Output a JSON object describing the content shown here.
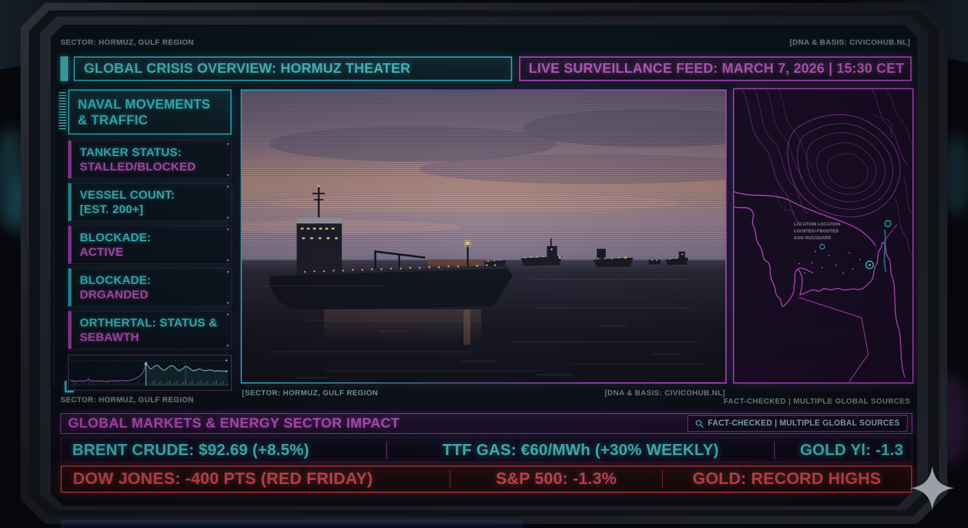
{
  "colors": {
    "cyan": "#4fdde3",
    "magenta": "#d35cd8",
    "red": "#f4555c",
    "gray": "#8f96a0",
    "map_line": "#d83fe8",
    "marker_cyan": "#3fe0e8"
  },
  "meta": {
    "sector_top": "SECTOR: HORMUZ, GULF REGION",
    "dna_top": "[DNA & BASIS: CIVICOHUB.NL]",
    "sector_caption": "[SECTOR: HORMUZ, GULF REGION",
    "dna_caption": "[DNA & BASIS: CIVICOHUB.NL]",
    "sector_bottom": "SECTOR: HORMUZ, GULF REGION",
    "fact_checked_plain": "FACT-CHECKED | MULTIPLE GLOBAL SOURCES"
  },
  "header": {
    "title": "GLOBAL CRISIS OVERVIEW: HORMUZ THEATER",
    "live_feed": "LIVE SURVEILLANCE FEED: MARCH 7, 2026 | 15:30 CET"
  },
  "sidebar": {
    "panels": [
      {
        "line1": "NAVAL MOVEMENTS",
        "line2": "& TRAFFIC"
      },
      {
        "line1": "TANKER STATUS:",
        "line2": "STALLED/BLOCKED"
      },
      {
        "line1": "VESSEL COUNT:",
        "line2": "[EST. 200+]"
      },
      {
        "line1": "BLOCKADE:",
        "line2": "ACTIVE"
      },
      {
        "line1": "BLOCKADE:",
        "line2": "DRGANDED"
      },
      {
        "line1": "ORTHERTAL: STATUS &",
        "line2": "SEBAWTH"
      }
    ]
  },
  "map": {
    "label_lines": [
      "LOCATION LOCATION",
      "LOC8TEG+FBOOTED",
      "AOG RUCOOARR"
    ]
  },
  "markets": {
    "section_title": "GLOBAL MARKETS & ENERGY SECTOR IMPACT",
    "fact_checked_chip": "FACT-CHECKED | MULTIPLE GLOBAL SOURCES",
    "energy_row": [
      "BRENT CRUDE: $92.69 (+8.5%)",
      "TTF GAS: €60/MWh (+30% WEEKLY)",
      "GOLD Yl: -1.3"
    ],
    "equity_row": [
      "DOW JONES: -400 PTS (RED FRIDAY)",
      "S&P 500: -1.3%",
      "GOLD: RECORD HIGHS"
    ]
  },
  "chart_data": {
    "type": "line",
    "title": "naval-traffic-sparkline",
    "values": [
      14,
      14,
      13,
      15,
      14,
      13,
      14,
      16,
      22,
      15,
      14,
      13,
      14,
      15,
      14,
      13,
      12,
      13,
      14,
      16,
      15,
      14,
      15,
      17,
      16,
      15,
      16,
      18,
      20,
      24,
      28,
      34,
      42,
      55,
      88,
      78,
      66,
      70,
      78,
      82,
      76,
      66,
      60,
      64,
      72,
      78,
      80,
      74,
      64,
      58,
      62,
      70,
      76,
      74,
      66,
      60,
      58,
      62,
      66,
      64,
      60,
      58,
      60,
      62,
      60,
      56,
      57,
      58,
      57,
      56,
      57,
      58
    ],
    "split_index": 34,
    "left_color": "#c058c8",
    "right_color": "#7fd8d8",
    "ylim": [
      0,
      100
    ],
    "marker_indices": [
      8,
      34,
      52
    ],
    "grid": "dashed-top",
    "volume_bars": true
  }
}
